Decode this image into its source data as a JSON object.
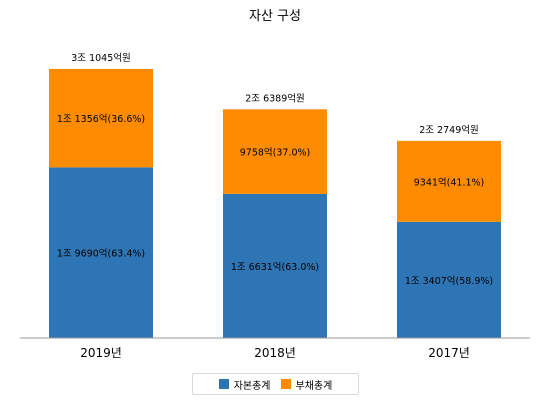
{
  "chart_data": {
    "type": "bar",
    "stacked": true,
    "title": "자산 구성",
    "categories": [
      "2019년",
      "2018년",
      "2017년"
    ],
    "totals": [
      31045,
      26389,
      22749
    ],
    "total_labels": [
      "3조 1045억원",
      "2조 6389억원",
      "2조 2749억원"
    ],
    "series": [
      {
        "name": "자본총계",
        "color": "#2e75b6",
        "values": [
          19690,
          16631,
          13407
        ],
        "labels": [
          "1조 9690억(63.4%)",
          "1조 6631억(63.0%)",
          "1조 3407억(58.9%)"
        ]
      },
      {
        "name": "부채총계",
        "color": "#ff8c00",
        "values": [
          11356,
          9758,
          9341
        ],
        "labels": [
          "1조 1356억(36.6%)",
          "9758억(37.0%)",
          "9341억(41.1%)"
        ]
      }
    ],
    "ylim": [
      0,
      33000
    ],
    "grid": false,
    "legend_position": "bottom",
    "axis_color": "#999999",
    "text_color": "#000000"
  }
}
